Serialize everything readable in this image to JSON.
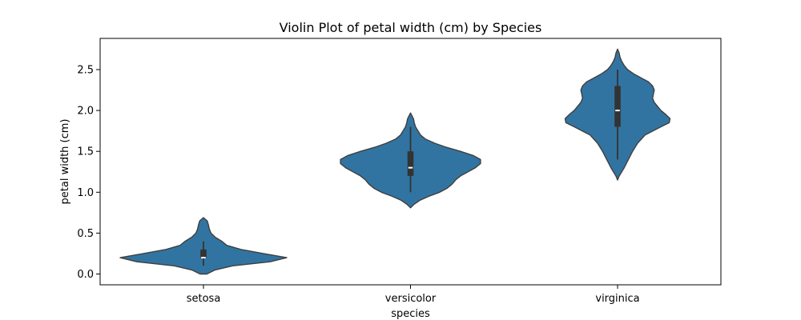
{
  "chart_data": {
    "type": "violin",
    "title": "Violin Plot of petal width (cm) by Species",
    "xlabel": "species",
    "ylabel": "petal width (cm)",
    "categories": [
      "setosa",
      "versicolor",
      "virginica"
    ],
    "ylim": [
      -0.13,
      2.85
    ],
    "yticks": [
      0.0,
      0.5,
      1.0,
      1.5,
      2.0,
      2.5
    ],
    "ytick_labels": [
      "0.0",
      "0.5",
      "1.0",
      "1.5",
      "2.0",
      "2.5"
    ],
    "grid": false,
    "color": "#3274a1",
    "box_color": "#333333",
    "violins": [
      {
        "category": "setosa",
        "min": 0.1,
        "q1": 0.2,
        "median": 0.2,
        "q3": 0.3,
        "max": 0.4,
        "density_extent": [
          0.0,
          0.69
        ],
        "density_profile": [
          [
            0.0,
            0.04
          ],
          [
            0.05,
            0.14
          ],
          [
            0.1,
            0.35
          ],
          [
            0.15,
            0.8
          ],
          [
            0.2,
            1.0
          ],
          [
            0.25,
            0.72
          ],
          [
            0.3,
            0.45
          ],
          [
            0.35,
            0.28
          ],
          [
            0.4,
            0.22
          ],
          [
            0.45,
            0.14
          ],
          [
            0.5,
            0.09
          ],
          [
            0.55,
            0.07
          ],
          [
            0.6,
            0.06
          ],
          [
            0.65,
            0.045
          ],
          [
            0.69,
            0.0
          ]
        ]
      },
      {
        "category": "versicolor",
        "min": 1.0,
        "q1": 1.2,
        "median": 1.3,
        "q3": 1.5,
        "max": 1.8,
        "density_extent": [
          0.81,
          1.97
        ],
        "density_profile": [
          [
            0.81,
            0.0
          ],
          [
            0.85,
            0.04
          ],
          [
            0.9,
            0.11
          ],
          [
            0.95,
            0.22
          ],
          [
            1.0,
            0.35
          ],
          [
            1.05,
            0.44
          ],
          [
            1.1,
            0.5
          ],
          [
            1.15,
            0.54
          ],
          [
            1.2,
            0.6
          ],
          [
            1.25,
            0.69
          ],
          [
            1.3,
            0.78
          ],
          [
            1.35,
            0.84
          ],
          [
            1.4,
            0.84
          ],
          [
            1.45,
            0.75
          ],
          [
            1.5,
            0.6
          ],
          [
            1.55,
            0.43
          ],
          [
            1.6,
            0.29
          ],
          [
            1.65,
            0.18
          ],
          [
            1.7,
            0.12
          ],
          [
            1.75,
            0.09
          ],
          [
            1.8,
            0.06
          ],
          [
            1.85,
            0.045
          ],
          [
            1.9,
            0.035
          ],
          [
            1.97,
            0.0
          ]
        ]
      },
      {
        "category": "virginica",
        "min": 1.4,
        "q1": 1.8,
        "median": 2.0,
        "q3": 2.3,
        "max": 2.5,
        "density_extent": [
          1.15,
          2.75
        ],
        "density_profile": [
          [
            1.15,
            0.0
          ],
          [
            1.2,
            0.02
          ],
          [
            1.3,
            0.08
          ],
          [
            1.4,
            0.13
          ],
          [
            1.5,
            0.18
          ],
          [
            1.6,
            0.24
          ],
          [
            1.7,
            0.33
          ],
          [
            1.8,
            0.52
          ],
          [
            1.85,
            0.62
          ],
          [
            1.9,
            0.63
          ],
          [
            1.95,
            0.58
          ],
          [
            2.0,
            0.52
          ],
          [
            2.05,
            0.48
          ],
          [
            2.1,
            0.44
          ],
          [
            2.15,
            0.42
          ],
          [
            2.2,
            0.43
          ],
          [
            2.25,
            0.44
          ],
          [
            2.3,
            0.42
          ],
          [
            2.35,
            0.37
          ],
          [
            2.4,
            0.28
          ],
          [
            2.45,
            0.19
          ],
          [
            2.5,
            0.12
          ],
          [
            2.55,
            0.08
          ],
          [
            2.6,
            0.05
          ],
          [
            2.65,
            0.03
          ],
          [
            2.7,
            0.02
          ],
          [
            2.75,
            0.0
          ]
        ]
      }
    ]
  }
}
